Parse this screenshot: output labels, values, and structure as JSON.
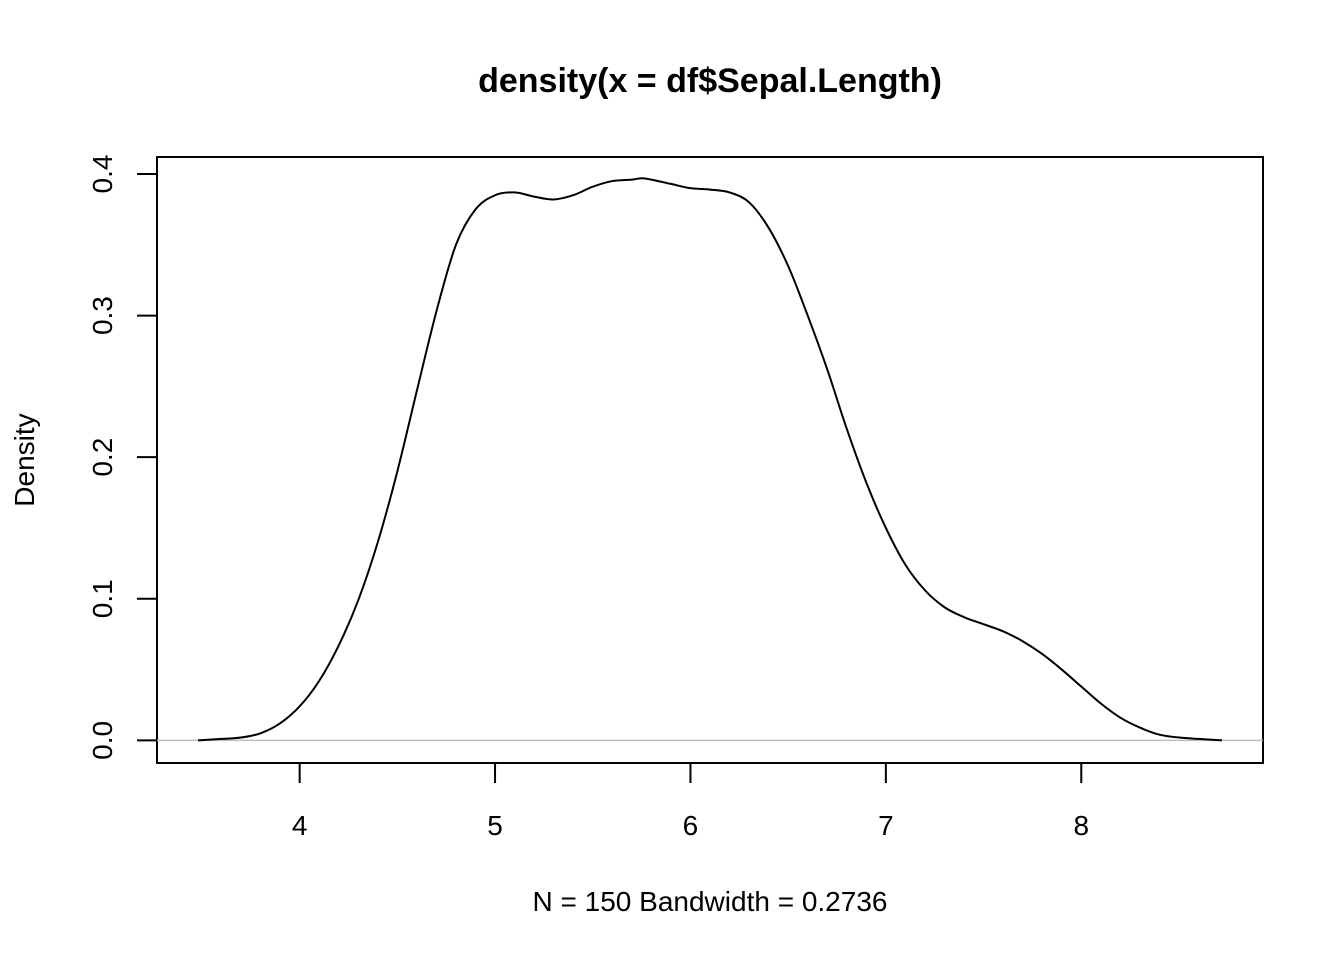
{
  "chart_data": {
    "type": "line",
    "title": "density(x = df$Sepal.Length)",
    "xlabel": "N = 150   Bandwidth = 0.2736",
    "ylabel": "Density",
    "xlim": [
      3.27,
      8.93
    ],
    "ylim": [
      -0.016,
      0.412
    ],
    "x_ticks": [
      4,
      5,
      6,
      7,
      8
    ],
    "x_tick_labels": [
      "4",
      "5",
      "6",
      "7",
      "8"
    ],
    "y_ticks": [
      0.0,
      0.1,
      0.2,
      0.3,
      0.4
    ],
    "y_tick_labels": [
      "0.0",
      "0.1",
      "0.2",
      "0.3",
      "0.4"
    ],
    "grid": false,
    "baseline": 0,
    "baseline_color": "#bebebe",
    "line_color": "#000000",
    "series": [
      {
        "x": [
          3.48,
          3.6,
          3.7,
          3.8,
          3.9,
          4.0,
          4.1,
          4.2,
          4.3,
          4.4,
          4.5,
          4.6,
          4.7,
          4.8,
          4.9,
          5.0,
          5.1,
          5.2,
          5.3,
          5.4,
          5.5,
          5.6,
          5.7,
          5.75,
          5.8,
          5.9,
          6.0,
          6.1,
          6.2,
          6.3,
          6.4,
          6.5,
          6.6,
          6.7,
          6.8,
          6.9,
          7.0,
          7.1,
          7.2,
          7.3,
          7.4,
          7.5,
          7.6,
          7.7,
          7.8,
          7.9,
          8.0,
          8.1,
          8.2,
          8.3,
          8.4,
          8.5,
          8.6,
          8.72
        ],
        "y": [
          0.0,
          0.001,
          0.002,
          0.005,
          0.012,
          0.024,
          0.042,
          0.067,
          0.099,
          0.14,
          0.19,
          0.247,
          0.303,
          0.35,
          0.375,
          0.385,
          0.387,
          0.384,
          0.382,
          0.385,
          0.391,
          0.395,
          0.396,
          0.397,
          0.396,
          0.393,
          0.39,
          0.389,
          0.387,
          0.38,
          0.362,
          0.335,
          0.3,
          0.262,
          0.22,
          0.182,
          0.15,
          0.124,
          0.106,
          0.094,
          0.087,
          0.082,
          0.077,
          0.07,
          0.061,
          0.05,
          0.038,
          0.026,
          0.016,
          0.009,
          0.004,
          0.002,
          0.001,
          0.0
        ]
      }
    ]
  }
}
